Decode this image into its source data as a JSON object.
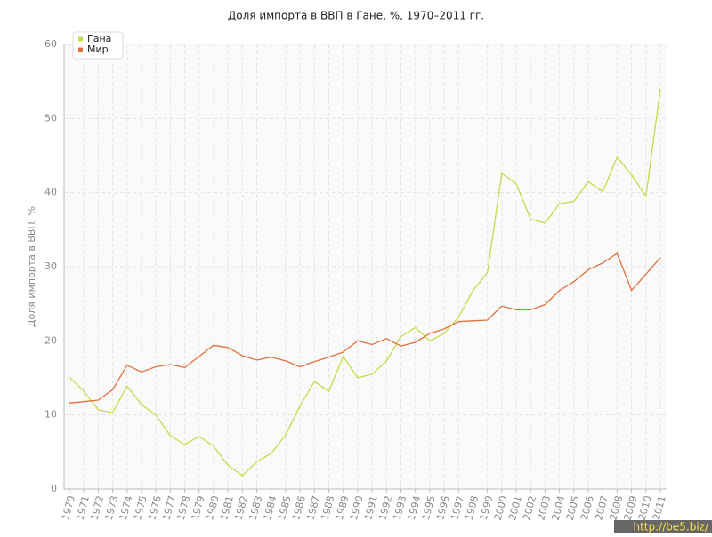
{
  "chart_data": {
    "type": "line",
    "title": "Доля импорта в ВВП в Гане, %, 1970–2011 гг.",
    "y_label": "Доля импорта в ВВП, %",
    "categories": [
      "1970",
      "1971",
      "1972",
      "1973",
      "1974",
      "1975",
      "1976",
      "1977",
      "1978",
      "1979",
      "1980",
      "1981",
      "1982",
      "1983",
      "1984",
      "1985",
      "1986",
      "1987",
      "1988",
      "1989",
      "1990",
      "1991",
      "1992",
      "1993",
      "1994",
      "1995",
      "1996",
      "1997",
      "1998",
      "1999",
      "2000",
      "2001",
      "2002",
      "2003",
      "2004",
      "2005",
      "2006",
      "2007",
      "2008",
      "2009",
      "2010",
      "2011"
    ],
    "series": [
      {
        "name": "Гана",
        "color": "#c3dc47",
        "values": [
          15.1,
          13.2,
          10.7,
          10.3,
          13.9,
          11.4,
          10.0,
          7.2,
          6.0,
          7.1,
          5.8,
          3.2,
          1.8,
          3.7,
          4.8,
          7.3,
          11.2,
          14.5,
          13.2,
          17.9,
          15.0,
          15.5,
          17.3,
          20.6,
          21.8,
          20.0,
          21.0,
          23.2,
          26.8,
          29.2,
          42.6,
          41.2,
          36.4,
          35.9,
          38.5,
          38.8,
          41.5,
          40.1,
          44.8,
          42.4,
          39.5,
          54.0
        ]
      },
      {
        "name": "Мир",
        "color": "#e0703c",
        "values": [
          11.6,
          11.8,
          12.0,
          13.4,
          16.7,
          15.8,
          16.5,
          16.8,
          16.4,
          17.9,
          19.4,
          19.1,
          18.0,
          17.4,
          17.8,
          17.3,
          16.5,
          17.2,
          17.8,
          18.5,
          20.0,
          19.5,
          20.3,
          19.3,
          19.8,
          21.0,
          21.6,
          22.6,
          22.7,
          22.8,
          24.7,
          24.2,
          24.2,
          24.9,
          26.8,
          28.0,
          29.6,
          30.5,
          31.8,
          26.8,
          29.0,
          31.2
        ]
      }
    ],
    "ylim": [
      0,
      60
    ],
    "yticks": [
      0,
      10,
      20,
      30,
      40,
      50,
      60
    ],
    "grid": true,
    "legend": "top-left",
    "watermark": "http://be5.biz/"
  }
}
